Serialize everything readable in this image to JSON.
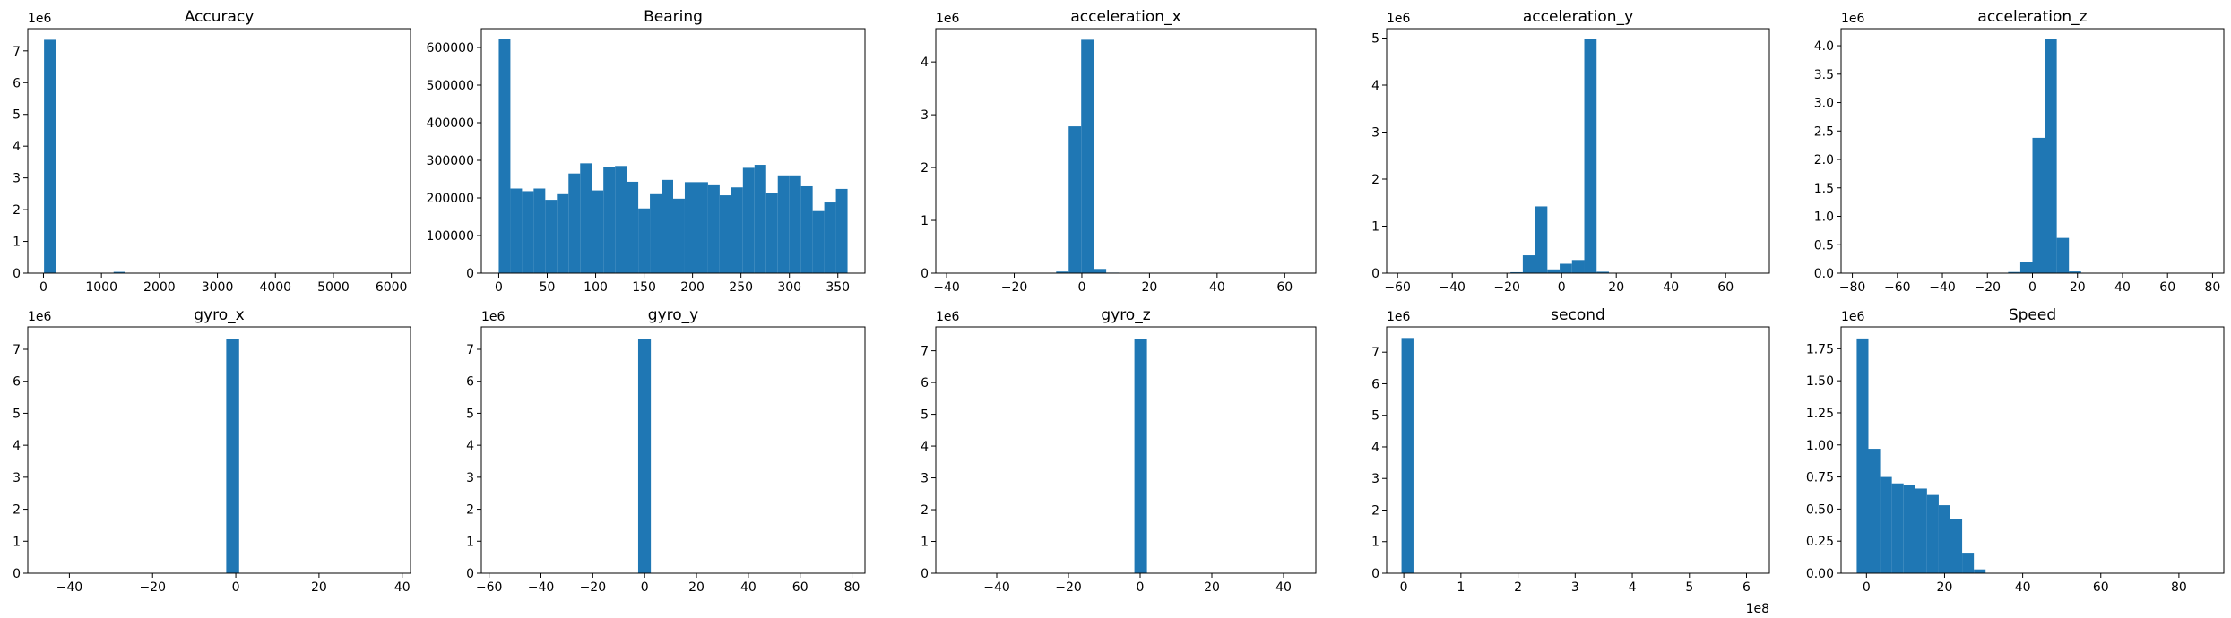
{
  "chart_data": [
    {
      "type": "bar",
      "title": "Accuracy",
      "bar_color": "#1f77b4",
      "xlim": [
        -270,
        6330
      ],
      "ylim": [
        0,
        7.7
      ],
      "y_multiplier": "1e6",
      "x_multiplier": "",
      "xticks": [
        0,
        1000,
        2000,
        3000,
        4000,
        5000,
        6000
      ],
      "xtick_labels": [
        "0",
        "1000",
        "2000",
        "3000",
        "4000",
        "5000",
        "6000"
      ],
      "yticks": [
        0,
        1,
        2,
        3,
        4,
        5,
        6,
        7
      ],
      "ytick_labels": [
        "0",
        "1",
        "2",
        "3",
        "4",
        "5",
        "6",
        "7"
      ],
      "bins": [
        {
          "x0": 10,
          "x1": 210,
          "y": 7.35
        },
        {
          "x0": 1210,
          "x1": 1410,
          "y": 0.04
        }
      ]
    },
    {
      "type": "bar",
      "title": "Bearing",
      "bar_color": "#1f77b4",
      "xlim": [
        -18,
        378
      ],
      "ylim": [
        0,
        650000
      ],
      "y_multiplier": "",
      "x_multiplier": "",
      "xticks": [
        0,
        50,
        100,
        150,
        200,
        250,
        300,
        350
      ],
      "xtick_labels": [
        "0",
        "50",
        "100",
        "150",
        "200",
        "250",
        "300",
        "350"
      ],
      "yticks": [
        0,
        100000,
        200000,
        300000,
        400000,
        500000,
        600000
      ],
      "ytick_labels": [
        "0",
        "100000",
        "200000",
        "300000",
        "400000",
        "500000",
        "600000"
      ],
      "bins": [
        {
          "x0": 0,
          "x1": 12,
          "y": 622000
        },
        {
          "x0": 12,
          "x1": 24,
          "y": 225000
        },
        {
          "x0": 24,
          "x1": 36,
          "y": 218000
        },
        {
          "x0": 36,
          "x1": 48,
          "y": 225000
        },
        {
          "x0": 48,
          "x1": 60,
          "y": 195000
        },
        {
          "x0": 60,
          "x1": 72,
          "y": 210000
        },
        {
          "x0": 72,
          "x1": 84,
          "y": 265000
        },
        {
          "x0": 84,
          "x1": 96,
          "y": 292000
        },
        {
          "x0": 96,
          "x1": 108,
          "y": 220000
        },
        {
          "x0": 108,
          "x1": 120,
          "y": 282000
        },
        {
          "x0": 120,
          "x1": 132,
          "y": 285000
        },
        {
          "x0": 132,
          "x1": 144,
          "y": 243000
        },
        {
          "x0": 144,
          "x1": 156,
          "y": 172000
        },
        {
          "x0": 156,
          "x1": 168,
          "y": 210000
        },
        {
          "x0": 168,
          "x1": 180,
          "y": 248000
        },
        {
          "x0": 180,
          "x1": 192,
          "y": 198000
        },
        {
          "x0": 192,
          "x1": 204,
          "y": 242000
        },
        {
          "x0": 204,
          "x1": 216,
          "y": 242000
        },
        {
          "x0": 216,
          "x1": 228,
          "y": 236000
        },
        {
          "x0": 228,
          "x1": 240,
          "y": 207000
        },
        {
          "x0": 240,
          "x1": 252,
          "y": 228000
        },
        {
          "x0": 252,
          "x1": 264,
          "y": 280000
        },
        {
          "x0": 264,
          "x1": 276,
          "y": 288000
        },
        {
          "x0": 276,
          "x1": 288,
          "y": 212000
        },
        {
          "x0": 288,
          "x1": 300,
          "y": 260000
        },
        {
          "x0": 300,
          "x1": 312,
          "y": 260000
        },
        {
          "x0": 312,
          "x1": 324,
          "y": 231000
        },
        {
          "x0": 324,
          "x1": 336,
          "y": 165000
        },
        {
          "x0": 336,
          "x1": 348,
          "y": 188000
        },
        {
          "x0": 348,
          "x1": 360,
          "y": 224000
        }
      ]
    },
    {
      "type": "bar",
      "title": "acceleration_x",
      "bar_color": "#1f77b4",
      "xlim": [
        -43.2,
        69.2
      ],
      "ylim": [
        0,
        4.63
      ],
      "y_multiplier": "1e6",
      "x_multiplier": "",
      "xticks": [
        -40,
        -20,
        0,
        20,
        40,
        60
      ],
      "xtick_labels": [
        "−40",
        "−20",
        "0",
        "20",
        "40",
        "60"
      ],
      "yticks": [
        0,
        1,
        2,
        3,
        4
      ],
      "ytick_labels": [
        "0",
        "1",
        "2",
        "3",
        "4"
      ],
      "bins": [
        {
          "x0": -7.6,
          "x1": -3.9,
          "y": 0.03
        },
        {
          "x0": -3.9,
          "x1": -0.2,
          "y": 2.78
        },
        {
          "x0": -0.2,
          "x1": 3.5,
          "y": 4.42
        },
        {
          "x0": 3.5,
          "x1": 7.2,
          "y": 0.08
        },
        {
          "x0": 7.2,
          "x1": 10.9,
          "y": 0.01
        }
      ]
    },
    {
      "type": "bar",
      "title": "acceleration_y",
      "bar_color": "#1f77b4",
      "xlim": [
        -64,
        76
      ],
      "ylim": [
        0,
        5.2
      ],
      "y_multiplier": "1e6",
      "x_multiplier": "",
      "xticks": [
        -60,
        -40,
        -20,
        0,
        20,
        40,
        60
      ],
      "xtick_labels": [
        "−60",
        "−40",
        "−20",
        "0",
        "20",
        "40",
        "60"
      ],
      "yticks": [
        0,
        1,
        2,
        3,
        4,
        5
      ],
      "ytick_labels": [
        "0",
        "1",
        "2",
        "3",
        "4",
        "5"
      ],
      "bins": [
        {
          "x0": -18.7,
          "x1": -14.2,
          "y": 0.02
        },
        {
          "x0": -14.2,
          "x1": -9.7,
          "y": 0.38
        },
        {
          "x0": -9.7,
          "x1": -5.2,
          "y": 1.42
        },
        {
          "x0": -5.2,
          "x1": -0.7,
          "y": 0.08
        },
        {
          "x0": -0.7,
          "x1": 3.8,
          "y": 0.2
        },
        {
          "x0": 3.8,
          "x1": 8.3,
          "y": 0.28
        },
        {
          "x0": 8.3,
          "x1": 12.8,
          "y": 4.98
        },
        {
          "x0": 12.8,
          "x1": 17.3,
          "y": 0.03
        }
      ]
    },
    {
      "type": "bar",
      "title": "acceleration_z",
      "bar_color": "#1f77b4",
      "xlim": [
        -85,
        85
      ],
      "ylim": [
        0,
        4.3
      ],
      "y_multiplier": "1e6",
      "x_multiplier": "",
      "xticks": [
        -80,
        -60,
        -40,
        -20,
        0,
        20,
        40,
        60,
        80
      ],
      "xtick_labels": [
        "−80",
        "−60",
        "−40",
        "−20",
        "0",
        "20",
        "40",
        "60",
        "80"
      ],
      "yticks": [
        0,
        0.5,
        1.0,
        1.5,
        2.0,
        2.5,
        3.0,
        3.5,
        4.0
      ],
      "ytick_labels": [
        "0.0",
        "0.5",
        "1.0",
        "1.5",
        "2.0",
        "2.5",
        "3.0",
        "3.5",
        "4.0"
      ],
      "bins": [
        {
          "x0": -10.8,
          "x1": -5.4,
          "y": 0.02
        },
        {
          "x0": -5.4,
          "x1": 0,
          "y": 0.2
        },
        {
          "x0": 0,
          "x1": 5.4,
          "y": 2.38
        },
        {
          "x0": 5.4,
          "x1": 10.8,
          "y": 4.12
        },
        {
          "x0": 10.8,
          "x1": 16.2,
          "y": 0.62
        },
        {
          "x0": 16.2,
          "x1": 21.6,
          "y": 0.03
        }
      ]
    },
    {
      "type": "bar",
      "title": "gyro_x",
      "bar_color": "#1f77b4",
      "xlim": [
        -50,
        42
      ],
      "ylim": [
        0,
        7.7
      ],
      "y_multiplier": "1e6",
      "x_multiplier": "",
      "xticks": [
        -40,
        -20,
        0,
        20,
        40
      ],
      "xtick_labels": [
        "−40",
        "−20",
        "0",
        "20",
        "40"
      ],
      "yticks": [
        0,
        1,
        2,
        3,
        4,
        5,
        6,
        7
      ],
      "ytick_labels": [
        "0",
        "1",
        "2",
        "3",
        "4",
        "5",
        "6",
        "7"
      ],
      "bins": [
        {
          "x0": -2.3,
          "x1": 0.8,
          "y": 7.33
        }
      ]
    },
    {
      "type": "bar",
      "title": "gyro_y",
      "bar_color": "#1f77b4",
      "xlim": [
        -63,
        85
      ],
      "ylim": [
        0,
        7.7
      ],
      "y_multiplier": "1e6",
      "x_multiplier": "",
      "xticks": [
        -60,
        -40,
        -20,
        0,
        20,
        40,
        60,
        80
      ],
      "xtick_labels": [
        "−60",
        "−40",
        "−20",
        "0",
        "20",
        "40",
        "60",
        "80"
      ],
      "yticks": [
        0,
        1,
        2,
        3,
        4,
        5,
        6,
        7
      ],
      "ytick_labels": [
        "0",
        "1",
        "2",
        "3",
        "4",
        "5",
        "6",
        "7"
      ],
      "bins": [
        {
          "x0": -2.5,
          "x1": 2.4,
          "y": 7.33
        }
      ]
    },
    {
      "type": "bar",
      "title": "gyro_z",
      "bar_color": "#1f77b4",
      "xlim": [
        -57,
        49
      ],
      "ylim": [
        0,
        7.75
      ],
      "y_multiplier": "1e6",
      "x_multiplier": "",
      "xticks": [
        -40,
        -20,
        0,
        20,
        40
      ],
      "xtick_labels": [
        "−40",
        "−20",
        "0",
        "20",
        "40"
      ],
      "yticks": [
        0,
        1,
        2,
        3,
        4,
        5,
        6,
        7
      ],
      "ytick_labels": [
        "0",
        "1",
        "2",
        "3",
        "4",
        "5",
        "6",
        "7"
      ],
      "bins": [
        {
          "x0": -1.6,
          "x1": 1.9,
          "y": 7.38
        }
      ]
    },
    {
      "type": "bar",
      "title": "second",
      "bar_color": "#1f77b4",
      "xlim": [
        -0.3,
        6.4
      ],
      "ylim": [
        0,
        7.8
      ],
      "y_multiplier": "1e6",
      "x_multiplier": "1e8",
      "xticks": [
        0,
        1,
        2,
        3,
        4,
        5,
        6
      ],
      "xtick_labels": [
        "0",
        "1",
        "2",
        "3",
        "4",
        "5",
        "6"
      ],
      "yticks": [
        0,
        1,
        2,
        3,
        4,
        5,
        6,
        7
      ],
      "ytick_labels": [
        "0",
        "1",
        "2",
        "3",
        "4",
        "5",
        "6",
        "7"
      ],
      "bins": [
        {
          "x0": -0.04,
          "x1": 0.17,
          "y": 7.45
        }
      ]
    },
    {
      "type": "bar",
      "title": "Speed",
      "bar_color": "#1f77b4",
      "xlim": [
        -6.5,
        91.5
      ],
      "ylim": [
        0,
        1.92
      ],
      "y_multiplier": "1e6",
      "x_multiplier": "",
      "xticks": [
        0,
        20,
        40,
        60,
        80
      ],
      "xtick_labels": [
        "0",
        "20",
        "40",
        "60",
        "80"
      ],
      "yticks": [
        0,
        0.25,
        0.5,
        0.75,
        1.0,
        1.25,
        1.5,
        1.75
      ],
      "ytick_labels": [
        "0.00",
        "0.25",
        "0.50",
        "0.75",
        "1.00",
        "1.25",
        "1.50",
        "1.75"
      ],
      "bins": [
        {
          "x0": -2.5,
          "x1": 0.5,
          "y": 1.83
        },
        {
          "x0": 0.5,
          "x1": 3.5,
          "y": 0.97
        },
        {
          "x0": 3.5,
          "x1": 6.5,
          "y": 0.75
        },
        {
          "x0": 6.5,
          "x1": 9.5,
          "y": 0.7
        },
        {
          "x0": 9.5,
          "x1": 12.5,
          "y": 0.69
        },
        {
          "x0": 12.5,
          "x1": 15.5,
          "y": 0.66
        },
        {
          "x0": 15.5,
          "x1": 18.5,
          "y": 0.61
        },
        {
          "x0": 18.5,
          "x1": 21.5,
          "y": 0.53
        },
        {
          "x0": 21.5,
          "x1": 24.5,
          "y": 0.42
        },
        {
          "x0": 24.5,
          "x1": 27.5,
          "y": 0.16
        },
        {
          "x0": 27.5,
          "x1": 30.5,
          "y": 0.03
        }
      ]
    }
  ]
}
